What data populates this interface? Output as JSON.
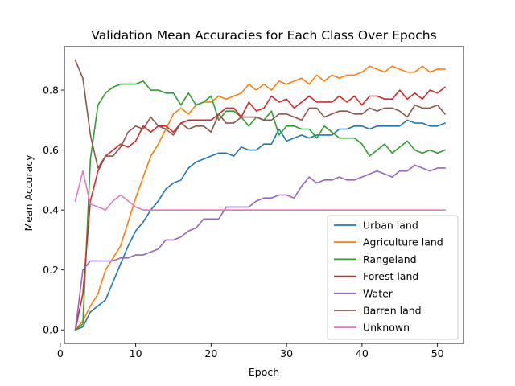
{
  "chart_data": {
    "type": "line",
    "title": "Validation Mean Accuracies for Each Class Over Epochs",
    "xlabel": "Epoch",
    "ylabel": "Mean Accuracy",
    "xlim": [
      0.55,
      53.45
    ],
    "ylim": [
      -0.045,
      0.945
    ],
    "xticks": [
      0,
      10,
      20,
      30,
      40,
      50
    ],
    "yticks": [
      0.0,
      0.2,
      0.4,
      0.6,
      0.8
    ],
    "grid": false,
    "legend_position": "lower-right",
    "x": [
      2,
      3,
      4,
      5,
      6,
      7,
      8,
      9,
      10,
      11,
      12,
      13,
      14,
      15,
      16,
      17,
      18,
      19,
      20,
      21,
      22,
      23,
      24,
      25,
      26,
      27,
      28,
      29,
      30,
      31,
      32,
      33,
      34,
      35,
      36,
      37,
      38,
      39,
      40,
      41,
      42,
      43,
      44,
      45,
      46,
      47,
      48,
      49,
      50,
      51
    ],
    "series": [
      {
        "name": "Urban land",
        "color": "#1f77b4",
        "values": [
          0.0,
          0.01,
          0.06,
          0.08,
          0.1,
          0.16,
          0.22,
          0.28,
          0.33,
          0.36,
          0.4,
          0.43,
          0.47,
          0.49,
          0.5,
          0.54,
          0.56,
          0.57,
          0.58,
          0.59,
          0.59,
          0.58,
          0.61,
          0.6,
          0.6,
          0.62,
          0.62,
          0.67,
          0.63,
          0.64,
          0.65,
          0.64,
          0.65,
          0.65,
          0.65,
          0.67,
          0.67,
          0.68,
          0.68,
          0.67,
          0.68,
          0.68,
          0.68,
          0.68,
          0.7,
          0.69,
          0.69,
          0.68,
          0.68,
          0.69
        ]
      },
      {
        "name": "Agriculture land",
        "color": "#ff7f0e",
        "values": [
          0.0,
          0.03,
          0.08,
          0.12,
          0.2,
          0.24,
          0.28,
          0.36,
          0.44,
          0.51,
          0.58,
          0.62,
          0.67,
          0.72,
          0.74,
          0.72,
          0.75,
          0.76,
          0.76,
          0.78,
          0.77,
          0.78,
          0.79,
          0.82,
          0.8,
          0.82,
          0.8,
          0.83,
          0.82,
          0.83,
          0.84,
          0.82,
          0.85,
          0.83,
          0.85,
          0.84,
          0.85,
          0.85,
          0.86,
          0.88,
          0.87,
          0.86,
          0.88,
          0.87,
          0.86,
          0.86,
          0.88,
          0.86,
          0.87,
          0.87
        ]
      },
      {
        "name": "Rangeland",
        "color": "#2ca02c",
        "values": [
          0.0,
          0.02,
          0.57,
          0.75,
          0.79,
          0.81,
          0.82,
          0.82,
          0.82,
          0.83,
          0.8,
          0.8,
          0.79,
          0.79,
          0.75,
          0.79,
          0.75,
          0.76,
          0.78,
          0.7,
          0.73,
          0.73,
          0.71,
          0.68,
          0.71,
          0.7,
          0.73,
          0.65,
          0.68,
          0.68,
          0.67,
          0.67,
          0.64,
          0.68,
          0.66,
          0.64,
          0.64,
          0.64,
          0.62,
          0.58,
          0.6,
          0.62,
          0.59,
          0.61,
          0.63,
          0.6,
          0.59,
          0.6,
          0.59,
          0.6
        ]
      },
      {
        "name": "Forest land",
        "color": "#d62728",
        "values": [
          0.0,
          0.12,
          0.43,
          0.53,
          0.58,
          0.6,
          0.62,
          0.61,
          0.63,
          0.68,
          0.66,
          0.68,
          0.68,
          0.66,
          0.69,
          0.7,
          0.7,
          0.7,
          0.7,
          0.72,
          0.74,
          0.74,
          0.71,
          0.76,
          0.73,
          0.74,
          0.78,
          0.76,
          0.77,
          0.74,
          0.76,
          0.78,
          0.76,
          0.76,
          0.76,
          0.78,
          0.76,
          0.78,
          0.75,
          0.78,
          0.78,
          0.77,
          0.77,
          0.8,
          0.77,
          0.79,
          0.77,
          0.8,
          0.79,
          0.81
        ]
      },
      {
        "name": "Water",
        "color": "#9467bd",
        "values": [
          0.0,
          0.2,
          0.23,
          0.23,
          0.23,
          0.23,
          0.24,
          0.24,
          0.25,
          0.25,
          0.26,
          0.27,
          0.3,
          0.3,
          0.31,
          0.33,
          0.34,
          0.37,
          0.37,
          0.37,
          0.41,
          0.41,
          0.41,
          0.41,
          0.43,
          0.44,
          0.44,
          0.45,
          0.45,
          0.44,
          0.48,
          0.51,
          0.49,
          0.5,
          0.5,
          0.51,
          0.5,
          0.5,
          0.51,
          0.52,
          0.53,
          0.52,
          0.51,
          0.53,
          0.53,
          0.55,
          0.54,
          0.53,
          0.54,
          0.54
        ]
      },
      {
        "name": "Barren land",
        "color": "#8c564b",
        "values": [
          0.9,
          0.84,
          0.65,
          0.54,
          0.58,
          0.58,
          0.61,
          0.66,
          0.68,
          0.67,
          0.71,
          0.68,
          0.67,
          0.65,
          0.69,
          0.67,
          0.68,
          0.68,
          0.66,
          0.72,
          0.69,
          0.69,
          0.71,
          0.71,
          0.71,
          0.7,
          0.7,
          0.72,
          0.72,
          0.71,
          0.7,
          0.74,
          0.74,
          0.71,
          0.72,
          0.73,
          0.73,
          0.72,
          0.72,
          0.74,
          0.73,
          0.74,
          0.74,
          0.73,
          0.71,
          0.75,
          0.74,
          0.74,
          0.75,
          0.72
        ]
      },
      {
        "name": "Unknown",
        "color": "#e377c2",
        "values": [
          0.43,
          0.53,
          0.42,
          0.41,
          0.4,
          0.43,
          0.45,
          0.43,
          0.41,
          0.4,
          0.4,
          0.4,
          0.4,
          0.4,
          0.4,
          0.4,
          0.4,
          0.4,
          0.4,
          0.4,
          0.4,
          0.4,
          0.4,
          0.4,
          0.4,
          0.4,
          0.4,
          0.4,
          0.4,
          0.4,
          0.4,
          0.4,
          0.4,
          0.4,
          0.4,
          0.4,
          0.4,
          0.4,
          0.4,
          0.4,
          0.4,
          0.4,
          0.4,
          0.4,
          0.4,
          0.4,
          0.4,
          0.4,
          0.4,
          0.4
        ]
      }
    ]
  }
}
